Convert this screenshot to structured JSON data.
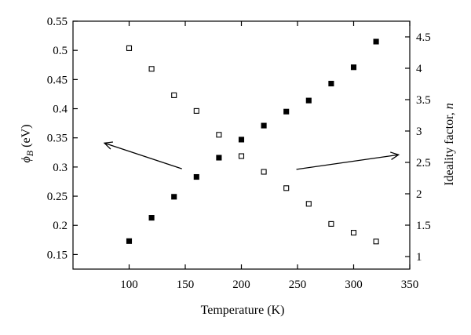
{
  "chart_data": {
    "type": "scatter",
    "xlabel": "Temperature (K)",
    "ylabel_left": {
      "symbol": "ϕ",
      "subscript": "B",
      "unit": " (eV)"
    },
    "ylabel_right": {
      "text": "Ideality factor, ",
      "italic": "n"
    },
    "xlim": [
      50,
      350
    ],
    "ylim_left": [
      0.125,
      0.55
    ],
    "ylim_right": [
      0.8,
      4.75
    ],
    "x_ticks": [
      100,
      150,
      200,
      250,
      300,
      350
    ],
    "x_tick_labels": [
      "100",
      "150",
      "200",
      "250",
      "300",
      "350"
    ],
    "y_left_ticks": [
      0.15,
      0.2,
      0.25,
      0.3,
      0.35,
      0.4,
      0.45,
      0.5,
      0.55
    ],
    "y_left_tick_labels": [
      "0.15",
      "0.2",
      "0.25",
      "0.3",
      "0.35",
      "0.4",
      "0.45",
      "0.5",
      "0.55"
    ],
    "y_right_ticks": [
      1,
      1.5,
      2,
      2.5,
      3,
      3.5,
      4,
      4.5
    ],
    "y_right_tick_labels": [
      "1",
      "1.5",
      "2",
      "2.5",
      "3",
      "3.5",
      "4",
      "4.5"
    ],
    "grid": false,
    "series": [
      {
        "marker": "filled-square",
        "axis": "left",
        "x": [
          100,
          120,
          140,
          160,
          180,
          200,
          220,
          240,
          260,
          280,
          300,
          320
        ],
        "y": [
          0.173,
          0.213,
          0.249,
          0.283,
          0.316,
          0.347,
          0.371,
          0.395,
          0.414,
          0.443,
          0.471,
          0.515
        ]
      },
      {
        "marker": "open-square",
        "axis": "right",
        "x": [
          100,
          120,
          140,
          160,
          180,
          200,
          220,
          240,
          260,
          280,
          300,
          320
        ],
        "y": [
          4.32,
          3.99,
          3.57,
          3.32,
          2.94,
          2.6,
          2.35,
          2.09,
          1.84,
          1.52,
          1.38,
          1.24
        ]
      }
    ],
    "annotations": [
      {
        "type": "arrow",
        "points_to": "left-axis",
        "from": [
          147,
          0.297
        ],
        "to": [
          78,
          0.341
        ]
      },
      {
        "type": "arrow",
        "points_to": "right-axis",
        "from": [
          249,
          0.296
        ],
        "to": [
          340,
          0.321
        ]
      }
    ],
    "colors": {
      "marker": "#000000",
      "axes": "#000000",
      "background": "#ffffff"
    }
  }
}
